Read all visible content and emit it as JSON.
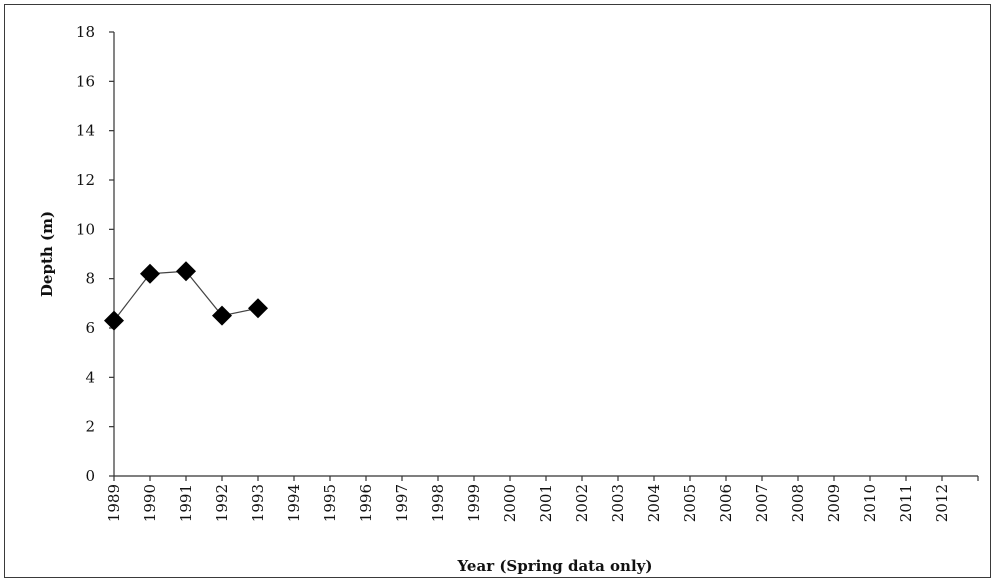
{
  "chart_data": {
    "type": "line",
    "title": "",
    "xlabel": "Year (Spring data only)",
    "ylabel": "Depth (m)",
    "ylim": [
      0,
      18
    ],
    "yticks": [
      0,
      2,
      4,
      6,
      8,
      10,
      12,
      14,
      16,
      18
    ],
    "categories": [
      "1989",
      "1990",
      "1991",
      "1992",
      "1993",
      "1994",
      "1995",
      "1996",
      "1997",
      "1998",
      "1999",
      "2000",
      "2001",
      "2002",
      "2003",
      "2004",
      "2005",
      "2006",
      "2007",
      "2008",
      "2009",
      "2010",
      "2011",
      "2012"
    ],
    "series": [
      {
        "marker": "diamond",
        "color": "#000000",
        "x": [
          "1989",
          "1990",
          "1991",
          "1992",
          "1993"
        ],
        "values": [
          6.3,
          8.2,
          8.3,
          6.5,
          6.8
        ]
      }
    ],
    "grid": false,
    "legend": "none"
  }
}
